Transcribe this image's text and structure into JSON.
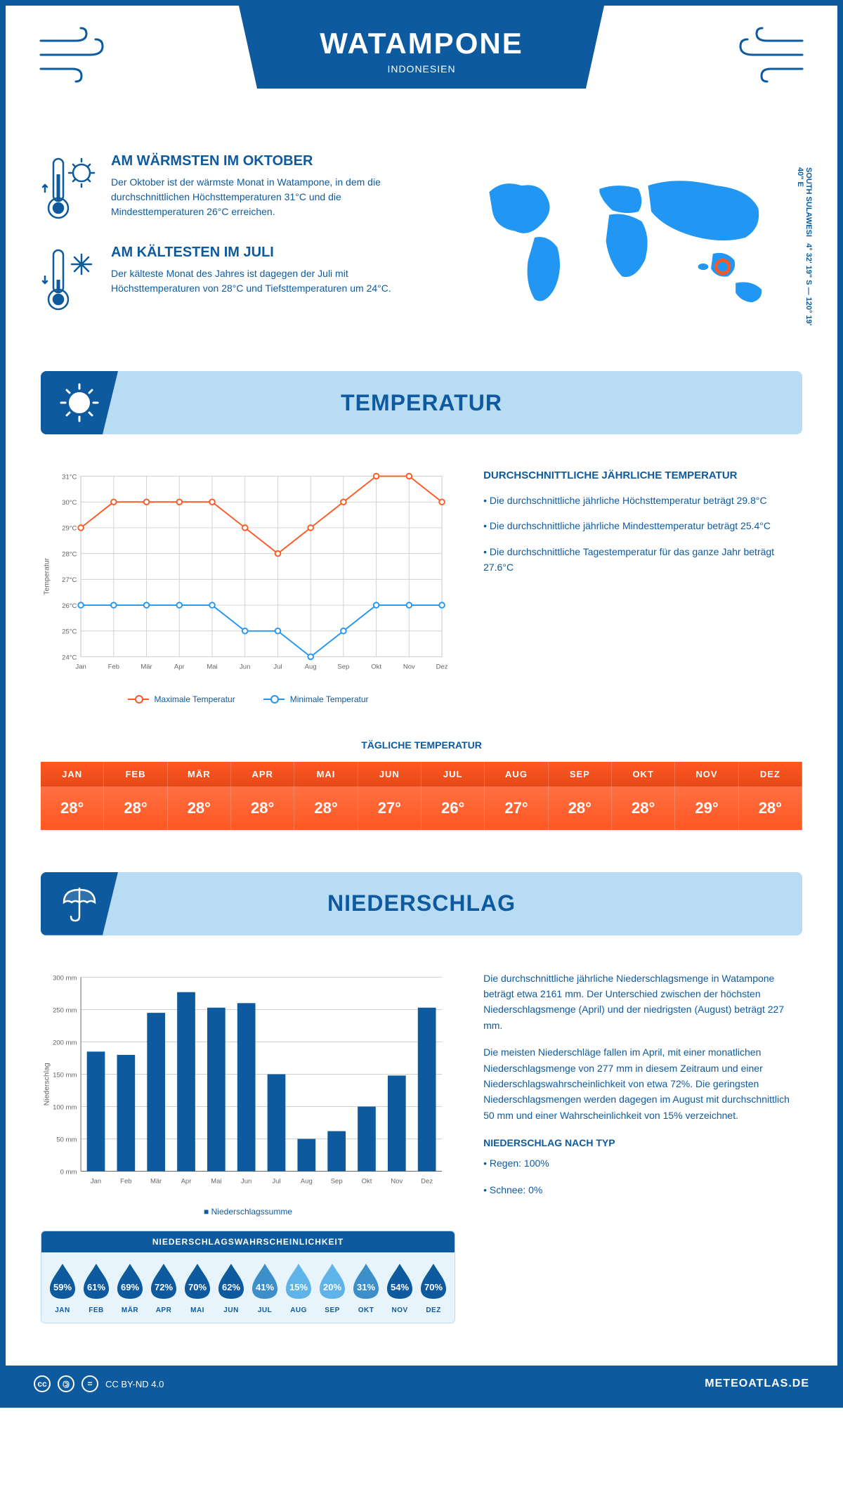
{
  "header": {
    "title": "WATAMPONE",
    "subtitle": "INDONESIEN"
  },
  "intro": {
    "warmest": {
      "title": "AM WÄRMSTEN IM OKTOBER",
      "text": "Der Oktober ist der wärmste Monat in Watampone, in dem die durchschnittlichen Höchsttemperaturen 31°C und die Mindesttemperaturen 26°C erreichen."
    },
    "coldest": {
      "title": "AM KÄLTESTEN IM JULI",
      "text": "Der kälteste Monat des Jahres ist dagegen der Juli mit Höchsttemperaturen von 28°C und Tiefsttemperaturen um 24°C."
    },
    "coords": "4° 32' 19\" S — 120° 19' 40\" E",
    "region": "SOUTH SULAWESI"
  },
  "colors": {
    "primary": "#0d5a9e",
    "light_blue": "#b8dcf4",
    "pale_blue": "#e8f4fc",
    "orange": "#ff5722",
    "blue_line": "#2196f3",
    "grid": "#d0d0d0",
    "white": "#ffffff",
    "drop_light": "#5eb3e8"
  },
  "months": [
    "Jan",
    "Feb",
    "Mär",
    "Apr",
    "Mai",
    "Jun",
    "Jul",
    "Aug",
    "Sep",
    "Okt",
    "Nov",
    "Dez"
  ],
  "months_upper": [
    "JAN",
    "FEB",
    "MÄR",
    "APR",
    "MAI",
    "JUN",
    "JUL",
    "AUG",
    "SEP",
    "OKT",
    "NOV",
    "DEZ"
  ],
  "temperature": {
    "section_title": "TEMPERATUR",
    "ylabel": "Temperatur",
    "yticks": [
      24,
      25,
      26,
      27,
      28,
      29,
      30,
      31
    ],
    "ytick_labels": [
      "24°C",
      "25°C",
      "26°C",
      "27°C",
      "28°C",
      "29°C",
      "30°C",
      "31°C"
    ],
    "max_series": [
      29,
      30,
      30,
      30,
      30,
      29,
      28,
      29,
      30,
      31,
      31,
      30
    ],
    "min_series": [
      26,
      26,
      26,
      26,
      26,
      25,
      25,
      24,
      25,
      26,
      26,
      26
    ],
    "legend_max": "Maximale Temperatur",
    "legend_min": "Minimale Temperatur",
    "info_title": "DURCHSCHNITTLICHE JÄHRLICHE TEMPERATUR",
    "info_bullets": [
      "• Die durchschnittliche jährliche Höchsttemperatur beträgt 29.8°C",
      "• Die durchschnittliche jährliche Mindesttemperatur beträgt 25.4°C",
      "• Die durchschnittliche Tagestemperatur für das ganze Jahr beträgt 27.6°C"
    ],
    "daily_title": "TÄGLICHE TEMPERATUR",
    "daily_values": [
      "28°",
      "28°",
      "28°",
      "28°",
      "28°",
      "27°",
      "26°",
      "27°",
      "28°",
      "28°",
      "29°",
      "28°"
    ]
  },
  "precipitation": {
    "section_title": "NIEDERSCHLAG",
    "ylabel": "Niederschlag",
    "yticks": [
      0,
      50,
      100,
      150,
      200,
      250,
      300
    ],
    "ytick_labels": [
      "0 mm",
      "50 mm",
      "100 mm",
      "150 mm",
      "200 mm",
      "250 mm",
      "300 mm"
    ],
    "values": [
      185,
      180,
      245,
      277,
      253,
      260,
      150,
      50,
      62,
      100,
      148,
      253
    ],
    "legend": "Niederschlagssumme",
    "para1": "Die durchschnittliche jährliche Niederschlagsmenge in Watampone beträgt etwa 2161 mm. Der Unterschied zwischen der höchsten Niederschlagsmenge (April) und der niedrigsten (August) beträgt 227 mm.",
    "para2": "Die meisten Niederschläge fallen im April, mit einer monatlichen Niederschlagsmenge von 277 mm in diesem Zeitraum und einer Niederschlagswahrscheinlichkeit von etwa 72%. Die geringsten Niederschlagsmengen werden dagegen im August mit durchschnittlich 50 mm und einer Wahrscheinlichkeit von 15% verzeichnet.",
    "type_title": "NIEDERSCHLAG NACH TYP",
    "type_bullets": [
      "• Regen: 100%",
      "• Schnee: 0%"
    ],
    "prob_title": "NIEDERSCHLAGSWAHRSCHEINLICHKEIT",
    "prob_values": [
      "59%",
      "61%",
      "69%",
      "72%",
      "70%",
      "62%",
      "41%",
      "15%",
      "20%",
      "31%",
      "54%",
      "70%"
    ],
    "prob_colors": [
      "#0d5a9e",
      "#0d5a9e",
      "#0d5a9e",
      "#0d5a9e",
      "#0d5a9e",
      "#0d5a9e",
      "#3d8fc9",
      "#5eb3e8",
      "#5eb3e8",
      "#3d8fc9",
      "#0d5a9e",
      "#0d5a9e"
    ]
  },
  "footer": {
    "license": "CC BY-ND 4.0",
    "brand": "METEOATLAS.DE"
  }
}
